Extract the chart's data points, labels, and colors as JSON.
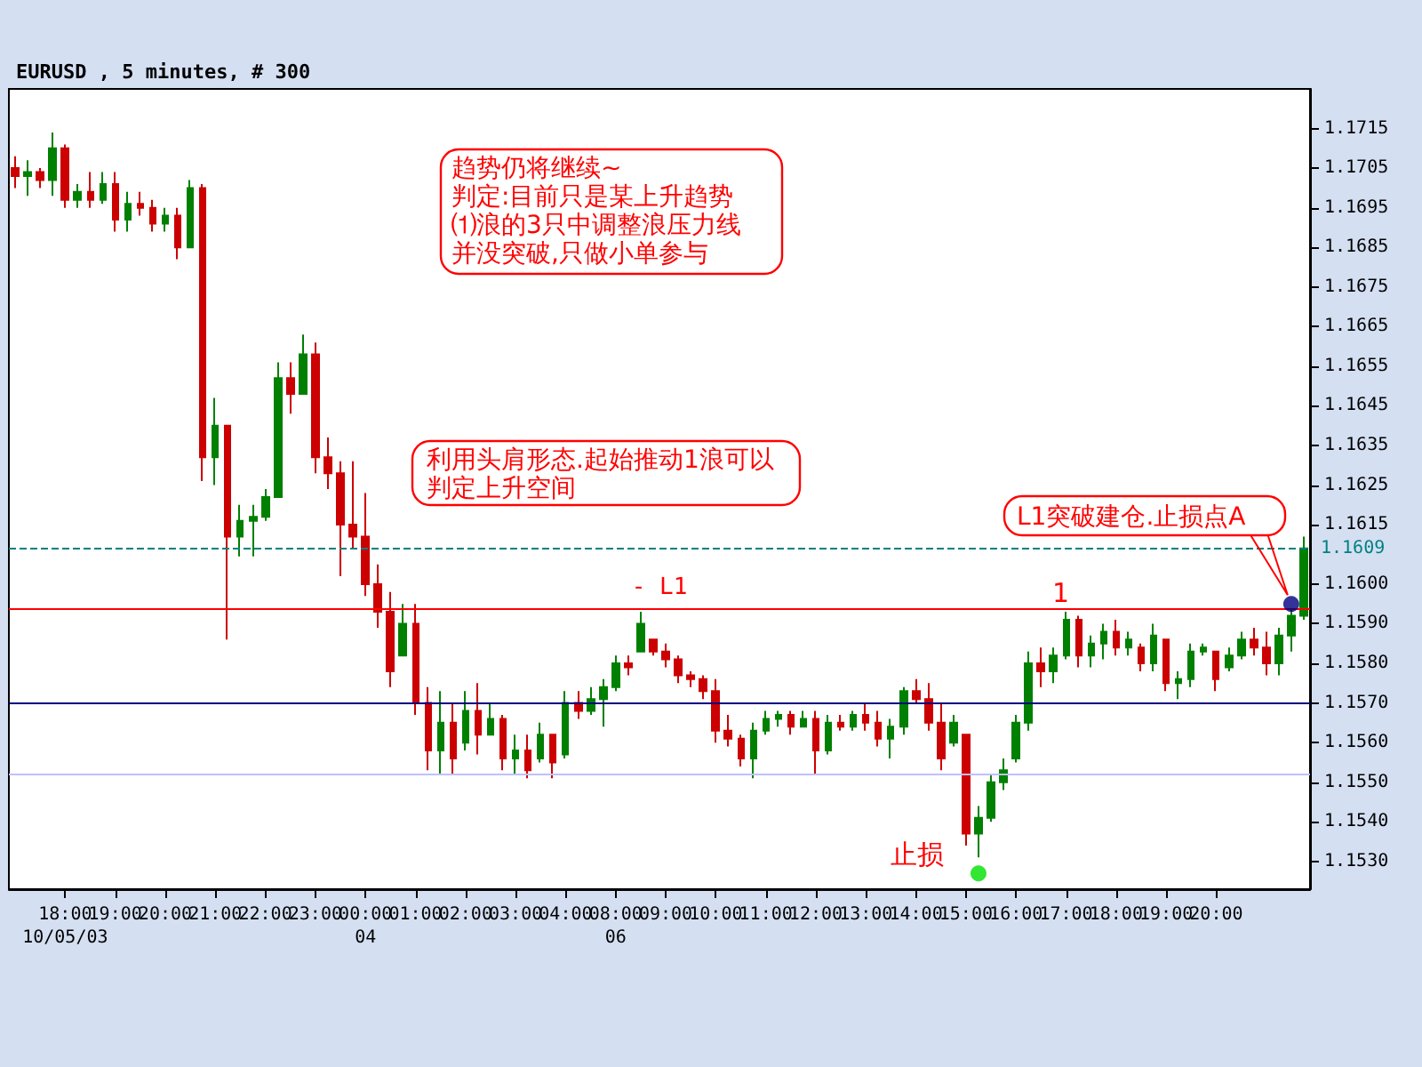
{
  "chart_data": {
    "type": "candlestick",
    "title": "EURUSD , 5 minutes, # 300",
    "categories": [
      null,
      null,
      null,
      null,
      "18:00\n10/05/03",
      null,
      null,
      null,
      "19:00",
      null,
      null,
      null,
      "20:00",
      null,
      null,
      null,
      "21:00",
      null,
      null,
      null,
      "22:00",
      null,
      null,
      null,
      "23:00",
      null,
      null,
      null,
      "00:00\n04",
      null,
      null,
      null,
      "01:00",
      null,
      null,
      null,
      "02:00",
      null,
      null,
      null,
      "03:00",
      null,
      null,
      null,
      "04:00",
      null,
      null,
      null,
      "08:00\n06",
      null,
      null,
      null,
      "09:00",
      null,
      null,
      null,
      "10:00",
      null,
      null,
      null,
      "11:00",
      null,
      null,
      null,
      "12:00",
      null,
      null,
      null,
      "13:00",
      null,
      null,
      null,
      "14:00",
      null,
      null,
      null,
      "15:00",
      null,
      null,
      null,
      "16:00",
      null,
      null,
      null,
      "17:00",
      null,
      null,
      null,
      "18:00",
      null,
      null,
      null,
      "19:00",
      null,
      null,
      null,
      "20:00",
      null,
      null,
      null,
      null,
      null,
      null,
      null
    ],
    "ohlc": [
      [
        1.1705,
        1.1708,
        1.17,
        1.1703
      ],
      [
        1.1703,
        1.1707,
        1.1698,
        1.1704
      ],
      [
        1.1704,
        1.1705,
        1.17,
        1.1702
      ],
      [
        1.1702,
        1.1714,
        1.1698,
        1.171
      ],
      [
        1.171,
        1.1711,
        1.1695,
        1.1697
      ],
      [
        1.1697,
        1.1701,
        1.1695,
        1.1699
      ],
      [
        1.1699,
        1.1704,
        1.1695,
        1.1697
      ],
      [
        1.1697,
        1.1704,
        1.1696,
        1.1701
      ],
      [
        1.1701,
        1.1704,
        1.1689,
        1.1692
      ],
      [
        1.1692,
        1.1699,
        1.1689,
        1.1696
      ],
      [
        1.1696,
        1.1699,
        1.1693,
        1.1695
      ],
      [
        1.1695,
        1.1697,
        1.1689,
        1.1691
      ],
      [
        1.1691,
        1.1695,
        1.1689,
        1.1693
      ],
      [
        1.1693,
        1.1695,
        1.1682,
        1.1685
      ],
      [
        1.1685,
        1.1702,
        1.1685,
        1.17
      ],
      [
        1.17,
        1.1701,
        1.1626,
        1.1632
      ],
      [
        1.1632,
        1.1647,
        1.1625,
        1.164
      ],
      [
        1.164,
        1.164,
        1.1586,
        1.1612
      ],
      [
        1.1612,
        1.162,
        1.1607,
        1.1616
      ],
      [
        1.1616,
        1.162,
        1.1607,
        1.1617
      ],
      [
        1.1617,
        1.1624,
        1.1616,
        1.1622
      ],
      [
        1.1622,
        1.1656,
        1.1622,
        1.1652
      ],
      [
        1.1652,
        1.1656,
        1.1643,
        1.1648
      ],
      [
        1.1648,
        1.1663,
        1.1648,
        1.1658
      ],
      [
        1.1658,
        1.1661,
        1.1628,
        1.1632
      ],
      [
        1.1632,
        1.1637,
        1.1624,
        1.1628
      ],
      [
        1.1628,
        1.1631,
        1.1602,
        1.1615
      ],
      [
        1.1615,
        1.1631,
        1.1609,
        1.1612
      ],
      [
        1.1612,
        1.1623,
        1.1597,
        1.16
      ],
      [
        1.16,
        1.1605,
        1.1589,
        1.1593
      ],
      [
        1.1593,
        1.1598,
        1.1574,
        1.1578
      ],
      [
        1.1582,
        1.1595,
        1.1582,
        1.159
      ],
      [
        1.159,
        1.1595,
        1.1567,
        1.157
      ],
      [
        1.157,
        1.1574,
        1.1553,
        1.1558
      ],
      [
        1.1558,
        1.1573,
        1.1552,
        1.1565
      ],
      [
        1.1565,
        1.157,
        1.1552,
        1.1556
      ],
      [
        1.156,
        1.1573,
        1.1558,
        1.1568
      ],
      [
        1.1568,
        1.1575,
        1.1557,
        1.1562
      ],
      [
        1.1562,
        1.157,
        1.1562,
        1.1566
      ],
      [
        1.1566,
        1.1567,
        1.1553,
        1.1556
      ],
      [
        1.1556,
        1.1562,
        1.1552,
        1.1558
      ],
      [
        1.1558,
        1.1562,
        1.1551,
        1.1553
      ],
      [
        1.1556,
        1.1565,
        1.1555,
        1.1562
      ],
      [
        1.1562,
        1.1562,
        1.1551,
        1.1555
      ],
      [
        1.1557,
        1.1573,
        1.1556,
        1.157
      ],
      [
        1.157,
        1.1573,
        1.1566,
        1.1568
      ],
      [
        1.1568,
        1.1574,
        1.1567,
        1.1571
      ],
      [
        1.1571,
        1.1576,
        1.1564,
        1.1574
      ],
      [
        1.1574,
        1.1582,
        1.1573,
        1.158
      ],
      [
        1.158,
        1.1582,
        1.1577,
        1.1579
      ],
      [
        1.1583,
        1.1593,
        1.1583,
        1.159
      ],
      [
        1.1586,
        1.1586,
        1.1582,
        1.1583
      ],
      [
        1.1583,
        1.1585,
        1.1579,
        1.1581
      ],
      [
        1.1581,
        1.1582,
        1.1575,
        1.1577
      ],
      [
        1.1577,
        1.1578,
        1.1574,
        1.1576
      ],
      [
        1.1576,
        1.1577,
        1.1571,
        1.1573
      ],
      [
        1.1573,
        1.1576,
        1.156,
        1.1563
      ],
      [
        1.1563,
        1.1567,
        1.1559,
        1.1561
      ],
      [
        1.1561,
        1.1562,
        1.1554,
        1.1556
      ],
      [
        1.1556,
        1.1565,
        1.1551,
        1.1563
      ],
      [
        1.1563,
        1.1568,
        1.1562,
        1.1566
      ],
      [
        1.1566,
        1.1568,
        1.1564,
        1.1567
      ],
      [
        1.1567,
        1.1568,
        1.1562,
        1.1564
      ],
      [
        1.1564,
        1.1568,
        1.1564,
        1.1566
      ],
      [
        1.1566,
        1.1568,
        1.1552,
        1.1558
      ],
      [
        1.1558,
        1.1567,
        1.1557,
        1.1565
      ],
      [
        1.1565,
        1.1567,
        1.1563,
        1.1564
      ],
      [
        1.1564,
        1.1568,
        1.1563,
        1.1567
      ],
      [
        1.1567,
        1.157,
        1.1563,
        1.1565
      ],
      [
        1.1565,
        1.1568,
        1.1559,
        1.1561
      ],
      [
        1.1561,
        1.1566,
        1.1556,
        1.1564
      ],
      [
        1.1564,
        1.1574,
        1.1562,
        1.1573
      ],
      [
        1.1573,
        1.1576,
        1.157,
        1.1571
      ],
      [
        1.1571,
        1.1575,
        1.1563,
        1.1565
      ],
      [
        1.1565,
        1.157,
        1.1553,
        1.1556
      ],
      [
        1.156,
        1.1567,
        1.1559,
        1.1565
      ],
      [
        1.1562,
        1.1562,
        1.1534,
        1.1537
      ],
      [
        1.1537,
        1.1544,
        1.1531,
        1.1541
      ],
      [
        1.1541,
        1.1552,
        1.154,
        1.155
      ],
      [
        1.155,
        1.1556,
        1.1548,
        1.1553
      ],
      [
        1.1556,
        1.1567,
        1.1555,
        1.1565
      ],
      [
        1.1565,
        1.1583,
        1.1563,
        1.158
      ],
      [
        1.158,
        1.1584,
        1.1574,
        1.1578
      ],
      [
        1.1578,
        1.1584,
        1.1575,
        1.1582
      ],
      [
        1.1582,
        1.1593,
        1.1581,
        1.1591
      ],
      [
        1.1591,
        1.1592,
        1.1579,
        1.1582
      ],
      [
        1.1582,
        1.1587,
        1.1579,
        1.1585
      ],
      [
        1.1585,
        1.159,
        1.1581,
        1.1588
      ],
      [
        1.1588,
        1.1591,
        1.1582,
        1.1584
      ],
      [
        1.1584,
        1.1588,
        1.1582,
        1.1586
      ],
      [
        1.1584,
        1.1585,
        1.1578,
        1.158
      ],
      [
        1.158,
        1.159,
        1.1578,
        1.1587
      ],
      [
        1.1586,
        1.1586,
        1.1573,
        1.1575
      ],
      [
        1.1575,
        1.1578,
        1.1571,
        1.1576
      ],
      [
        1.1576,
        1.1585,
        1.1574,
        1.1583
      ],
      [
        1.1583,
        1.1585,
        1.1582,
        1.1584
      ],
      [
        1.1583,
        1.1583,
        1.1573,
        1.1576
      ],
      [
        1.1579,
        1.1584,
        1.1578,
        1.1582
      ],
      [
        1.1582,
        1.1588,
        1.1581,
        1.1586
      ],
      [
        1.1586,
        1.1589,
        1.1582,
        1.1584
      ],
      [
        1.1584,
        1.1588,
        1.1577,
        1.158
      ],
      [
        1.158,
        1.1589,
        1.1577,
        1.1587
      ],
      [
        1.1587,
        1.1594,
        1.1583,
        1.1592
      ],
      [
        1.1592,
        1.1612,
        1.1591,
        1.1609
      ]
    ],
    "colors": [
      "#cc0000",
      "#008000",
      "#cc0000",
      "#008000",
      "#cc0000",
      "#008000",
      "#cc0000",
      "#008000",
      "#cc0000",
      "#008000",
      "#cc0000",
      "#cc0000",
      "#008000",
      "#cc0000",
      "#008000",
      "#cc0000",
      "#008000",
      "#cc0000",
      "#008000",
      "#008000",
      "#008000",
      "#008000",
      "#cc0000",
      "#008000",
      "#cc0000",
      "#cc0000",
      "#cc0000",
      "#cc0000",
      "#cc0000",
      "#cc0000",
      "#cc0000",
      "#008000",
      "#cc0000",
      "#cc0000",
      "#008000",
      "#cc0000",
      "#008000",
      "#cc0000",
      "#008000",
      "#cc0000",
      "#008000",
      "#cc0000",
      "#008000",
      "#cc0000",
      "#008000",
      "#cc0000",
      "#008000",
      "#008000",
      "#008000",
      "#cc0000",
      "#008000",
      "#cc0000",
      "#cc0000",
      "#cc0000",
      "#cc0000",
      "#cc0000",
      "#cc0000",
      "#cc0000",
      "#cc0000",
      "#008000",
      "#008000",
      "#008000",
      "#cc0000",
      "#008000",
      "#cc0000",
      "#008000",
      "#cc0000",
      "#008000",
      "#cc0000",
      "#cc0000",
      "#008000",
      "#008000",
      "#cc0000",
      "#cc0000",
      "#cc0000",
      "#008000",
      "#cc0000",
      "#008000",
      "#008000",
      "#008000",
      "#008000",
      "#008000",
      "#cc0000",
      "#008000",
      "#008000",
      "#cc0000",
      "#008000",
      "#008000",
      "#cc0000",
      "#008000",
      "#cc0000",
      "#008000",
      "#cc0000",
      "#008000",
      "#008000",
      "#008000",
      "#cc0000",
      "#008000",
      "#008000",
      "#cc0000",
      "#cc0000",
      "#008000",
      "#008000",
      "#008000"
    ],
    "series": [
      {
        "type": "scatter",
        "color": "#000080",
        "marker": "circle",
        "values": [
          null,
          null,
          null,
          null,
          null,
          null,
          null,
          null,
          null,
          null,
          null,
          null,
          null,
          null,
          null,
          null,
          null,
          null,
          null,
          null,
          null,
          null,
          null,
          null,
          null,
          null,
          null,
          null,
          null,
          null,
          null,
          null,
          null,
          null,
          null,
          null,
          null,
          null,
          null,
          null,
          null,
          null,
          null,
          null,
          null,
          null,
          null,
          null,
          null,
          null,
          null,
          null,
          null,
          null,
          null,
          null,
          null,
          null,
          null,
          null,
          null,
          null,
          null,
          null,
          null,
          null,
          null,
          null,
          null,
          null,
          null,
          null,
          null,
          null,
          null,
          null,
          null,
          null,
          null,
          null,
          null,
          null,
          null,
          null,
          null,
          null,
          null,
          null,
          null,
          null,
          null,
          null,
          null,
          null,
          null,
          null,
          null,
          null,
          null,
          null,
          null,
          null,
          1.1595,
          null
        ]
      },
      {
        "type": "scatter",
        "color": "#00e000",
        "marker": "circle",
        "values": [
          null,
          null,
          null,
          null,
          null,
          null,
          null,
          null,
          null,
          null,
          null,
          null,
          null,
          null,
          null,
          null,
          null,
          null,
          null,
          null,
          null,
          null,
          null,
          null,
          null,
          null,
          null,
          null,
          null,
          null,
          null,
          null,
          null,
          null,
          null,
          null,
          null,
          null,
          null,
          null,
          null,
          null,
          null,
          null,
          null,
          null,
          null,
          null,
          null,
          null,
          null,
          null,
          null,
          null,
          null,
          null,
          null,
          null,
          null,
          null,
          null,
          null,
          null,
          null,
          null,
          null,
          null,
          null,
          null,
          null,
          null,
          null,
          null,
          null,
          null,
          null,
          null,
          1.1527,
          null,
          null,
          null,
          null,
          null,
          null,
          null,
          null,
          null,
          null,
          null,
          null,
          null,
          null,
          null,
          null,
          null,
          null,
          null,
          null,
          null,
          null,
          null,
          null,
          null,
          null
        ]
      }
    ],
    "ylim": [
      1.1523,
      1.1725
    ],
    "yticks": [
      {
        "value": 1.153,
        "label": "1.1530"
      },
      {
        "value": 1.154,
        "label": "1.1540"
      },
      {
        "value": 1.155,
        "label": "1.1550"
      },
      {
        "value": 1.156,
        "label": "1.1560"
      },
      {
        "value": 1.157,
        "label": "1.1570"
      },
      {
        "value": 1.158,
        "label": "1.1580"
      },
      {
        "value": 1.159,
        "label": "1.1590"
      },
      {
        "value": 1.16,
        "label": "1.1600"
      },
      {
        "value": 1.1615,
        "label": "1.1615"
      },
      {
        "value": 1.1625,
        "label": "1.1625"
      },
      {
        "value": 1.1635,
        "label": "1.1635"
      },
      {
        "value": 1.1645,
        "label": "1.1645"
      },
      {
        "value": 1.1655,
        "label": "1.1655"
      },
      {
        "value": 1.1665,
        "label": "1.1665"
      },
      {
        "value": 1.1675,
        "label": "1.1675"
      },
      {
        "value": 1.1685,
        "label": "1.1685"
      },
      {
        "value": 1.1695,
        "label": "1.1695"
      },
      {
        "value": 1.1705,
        "label": "1.1705"
      },
      {
        "value": 1.1715,
        "label": "1.1715"
      }
    ],
    "ref_lines": [
      {
        "axis": "y",
        "value": 1.1609,
        "label": "1.1609",
        "color": "#008080",
        "line_style": "dashed"
      },
      {
        "axis": "y",
        "value": 1.1594,
        "label": "- L1",
        "color": "#ff0000",
        "line_style": "solid"
      },
      {
        "axis": "y",
        "value": 1.157,
        "color": "#000080",
        "line_style": "solid"
      },
      {
        "axis": "y",
        "value": 1.1552,
        "color": "#c0c0ff",
        "line_style": "solid"
      }
    ],
    "annotations": [
      "趋势仍将继续~",
      "判定:目前只是某上升趋势⑴浪的3只中调整浪压力线并没突破,只做小单参与",
      "利用头肩形态.起始推动1浪可以判定上升空间",
      "L1突破建仓.止损点A",
      "止损",
      "1"
    ]
  }
}
